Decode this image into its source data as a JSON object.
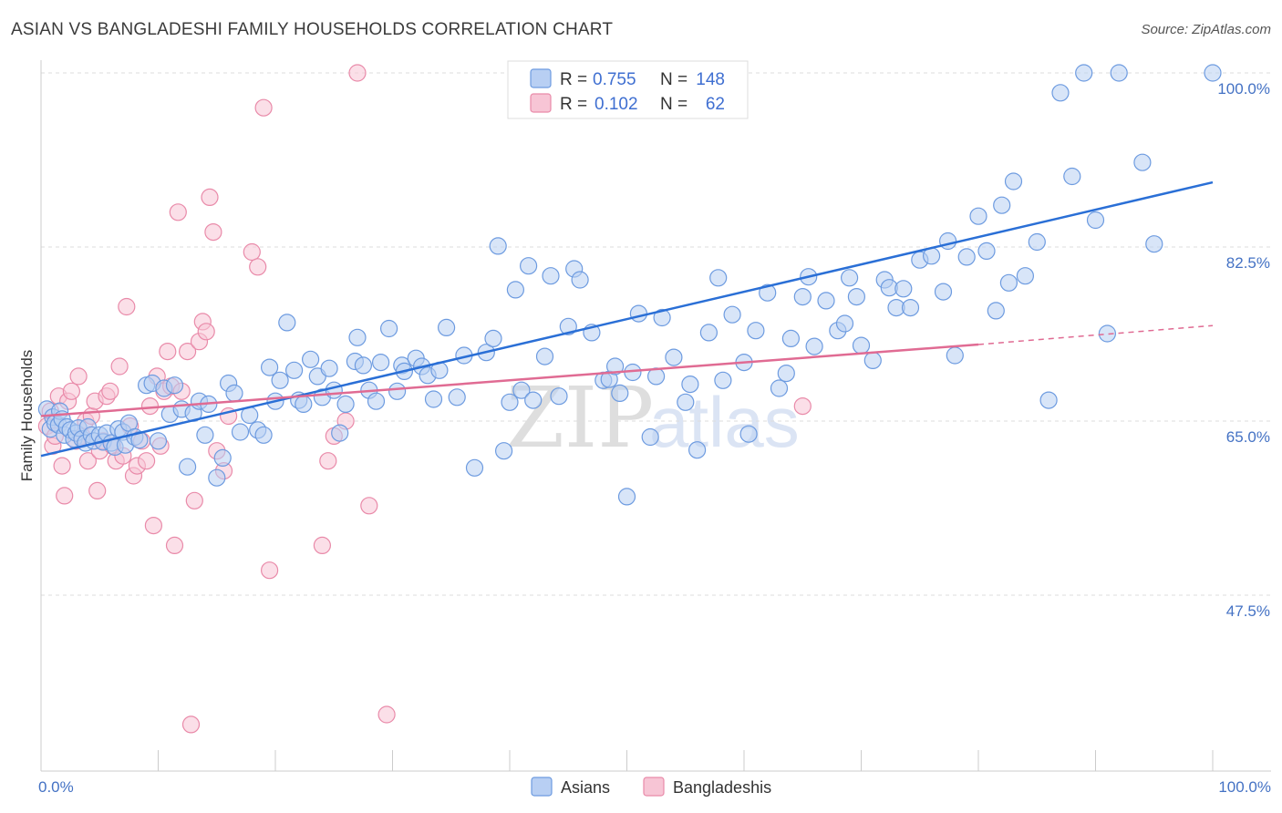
{
  "title": "ASIAN VS BANGLADESHI FAMILY HOUSEHOLDS CORRELATION CHART",
  "source": "Source: ZipAtlas.com",
  "watermark": {
    "zip": "ZIP",
    "atlas": "atlas"
  },
  "chart_data": {
    "type": "scatter",
    "ylabel": "Family Households",
    "xlabel": "",
    "xlim": [
      0,
      100
    ],
    "ylim": [
      30,
      100
    ],
    "x_ticks": [
      "0.0%",
      "100.0%"
    ],
    "y_ticks": [
      {
        "value": 100.0,
        "label": "100.0%"
      },
      {
        "value": 82.5,
        "label": "82.5%"
      },
      {
        "value": 65.0,
        "label": "65.0%"
      },
      {
        "value": 47.5,
        "label": "47.5%"
      }
    ],
    "legend": {
      "r_label": "R =",
      "n_label": "N =",
      "entries": [
        {
          "name": "Asians",
          "r": "0.755",
          "n": "148",
          "color": "#6d9be0",
          "fill": "#b8cff3"
        },
        {
          "name": "Bangladeshis",
          "r": "0.102",
          "n": "62",
          "color": "#e98aa9",
          "fill": "#f7c5d5"
        }
      ]
    },
    "series": [
      {
        "name": "Asians",
        "color": "#6d9be0",
        "trend": {
          "x0": 0,
          "y0": 61.5,
          "x1": 100,
          "y1": 89.0,
          "color": "#2a6fd6"
        },
        "points": [
          [
            0.5,
            66.2
          ],
          [
            0.8,
            64.2
          ],
          [
            1.0,
            65.4
          ],
          [
            1.2,
            64.8
          ],
          [
            1.5,
            64.6
          ],
          [
            1.6,
            66.0
          ],
          [
            1.8,
            65.2
          ],
          [
            2.0,
            63.6
          ],
          [
            2.2,
            64.4
          ],
          [
            2.5,
            64.1
          ],
          [
            2.8,
            63.2
          ],
          [
            3.0,
            63.8
          ],
          [
            3.2,
            64.3
          ],
          [
            3.5,
            63.2
          ],
          [
            3.8,
            62.8
          ],
          [
            4.0,
            64.4
          ],
          [
            4.3,
            63.6
          ],
          [
            4.5,
            63.0
          ],
          [
            5.0,
            63.6
          ],
          [
            5.3,
            62.9
          ],
          [
            5.6,
            63.8
          ],
          [
            6.0,
            62.8
          ],
          [
            6.3,
            62.4
          ],
          [
            6.6,
            64.2
          ],
          [
            7.0,
            63.9
          ],
          [
            7.2,
            62.6
          ],
          [
            7.5,
            64.8
          ],
          [
            8.0,
            63.4
          ],
          [
            8.4,
            63.1
          ],
          [
            9.0,
            68.6
          ],
          [
            9.5,
            68.8
          ],
          [
            10.0,
            63.0
          ],
          [
            10.5,
            68.3
          ],
          [
            11.0,
            65.7
          ],
          [
            11.4,
            68.6
          ],
          [
            12.0,
            66.2
          ],
          [
            12.5,
            60.4
          ],
          [
            13.0,
            65.8
          ],
          [
            13.5,
            67.0
          ],
          [
            14.0,
            63.6
          ],
          [
            14.3,
            66.7
          ],
          [
            15.0,
            59.3
          ],
          [
            15.5,
            61.3
          ],
          [
            16.0,
            68.8
          ],
          [
            16.5,
            67.8
          ],
          [
            17.0,
            63.9
          ],
          [
            17.8,
            65.6
          ],
          [
            18.5,
            64.1
          ],
          [
            19.0,
            63.6
          ],
          [
            19.5,
            70.4
          ],
          [
            20.0,
            67.0
          ],
          [
            20.4,
            69.1
          ],
          [
            21.0,
            74.9
          ],
          [
            21.6,
            70.1
          ],
          [
            22.0,
            67.1
          ],
          [
            22.4,
            66.7
          ],
          [
            23.0,
            71.2
          ],
          [
            23.6,
            69.5
          ],
          [
            24.0,
            67.4
          ],
          [
            24.6,
            70.3
          ],
          [
            25.0,
            68.1
          ],
          [
            25.5,
            63.8
          ],
          [
            26.0,
            66.7
          ],
          [
            26.8,
            71.0
          ],
          [
            27.0,
            73.4
          ],
          [
            27.5,
            70.6
          ],
          [
            28.0,
            68.1
          ],
          [
            28.6,
            67.0
          ],
          [
            29.0,
            70.9
          ],
          [
            29.7,
            74.3
          ],
          [
            30.4,
            68.0
          ],
          [
            30.8,
            70.6
          ],
          [
            31.0,
            70.0
          ],
          [
            32.0,
            71.3
          ],
          [
            32.5,
            70.5
          ],
          [
            33.0,
            69.6
          ],
          [
            33.5,
            67.2
          ],
          [
            34.0,
            70.1
          ],
          [
            34.6,
            74.4
          ],
          [
            35.5,
            67.4
          ],
          [
            36.1,
            71.6
          ],
          [
            37.0,
            60.3
          ],
          [
            38.0,
            71.9
          ],
          [
            38.6,
            73.3
          ],
          [
            39.0,
            82.6
          ],
          [
            39.5,
            62.0
          ],
          [
            40.0,
            66.9
          ],
          [
            40.5,
            78.2
          ],
          [
            41.0,
            68.1
          ],
          [
            41.6,
            80.6
          ],
          [
            42.0,
            67.1
          ],
          [
            43.0,
            71.5
          ],
          [
            43.5,
            79.6
          ],
          [
            44.2,
            67.5
          ],
          [
            45.0,
            74.5
          ],
          [
            45.5,
            80.3
          ],
          [
            46.0,
            79.2
          ],
          [
            47.0,
            73.9
          ],
          [
            48.0,
            69.1
          ],
          [
            48.5,
            69.2
          ],
          [
            49.0,
            70.5
          ],
          [
            49.4,
            67.8
          ],
          [
            50.0,
            57.4
          ],
          [
            50.5,
            69.9
          ],
          [
            51.0,
            75.8
          ],
          [
            52.0,
            63.4
          ],
          [
            52.5,
            69.5
          ],
          [
            53.0,
            75.4
          ],
          [
            54.0,
            71.4
          ],
          [
            55.0,
            66.9
          ],
          [
            55.4,
            68.7
          ],
          [
            56.0,
            62.1
          ],
          [
            57.0,
            73.9
          ],
          [
            57.8,
            79.4
          ],
          [
            58.2,
            69.1
          ],
          [
            59.0,
            75.7
          ],
          [
            60.0,
            70.9
          ],
          [
            60.4,
            63.7
          ],
          [
            61.0,
            74.1
          ],
          [
            62.0,
            77.9
          ],
          [
            63.0,
            68.3
          ],
          [
            63.6,
            69.8
          ],
          [
            64.0,
            73.3
          ],
          [
            65.0,
            77.5
          ],
          [
            65.5,
            79.5
          ],
          [
            66.0,
            72.5
          ],
          [
            67.0,
            77.1
          ],
          [
            68.0,
            74.1
          ],
          [
            68.6,
            74.8
          ],
          [
            69.0,
            79.4
          ],
          [
            69.6,
            77.5
          ],
          [
            70.0,
            72.6
          ],
          [
            71.0,
            71.1
          ],
          [
            72.0,
            79.2
          ],
          [
            72.4,
            78.4
          ],
          [
            73.0,
            76.4
          ],
          [
            73.6,
            78.3
          ],
          [
            74.2,
            76.4
          ],
          [
            75.0,
            81.2
          ],
          [
            76.0,
            81.6
          ],
          [
            77.0,
            78.0
          ],
          [
            77.4,
            83.1
          ],
          [
            78.0,
            71.6
          ],
          [
            79.0,
            81.5
          ],
          [
            80.0,
            85.6
          ],
          [
            80.7,
            82.1
          ],
          [
            81.5,
            76.1
          ],
          [
            82.0,
            86.7
          ],
          [
            82.6,
            78.9
          ],
          [
            83.0,
            89.1
          ],
          [
            84.0,
            79.6
          ],
          [
            85.0,
            83.0
          ],
          [
            86.0,
            67.1
          ],
          [
            87.0,
            98.0
          ],
          [
            88.0,
            89.6
          ],
          [
            89.0,
            100.0
          ],
          [
            90.0,
            85.2
          ],
          [
            91.0,
            73.8
          ],
          [
            92.0,
            100.0
          ],
          [
            94.0,
            91.0
          ],
          [
            95.0,
            82.8
          ],
          [
            100.0,
            100.0
          ]
        ]
      },
      {
        "name": "Bangladeshis",
        "color": "#e98aa9",
        "trend": {
          "x0": 0,
          "y0": 65.5,
          "x1": 80,
          "y1": 72.7,
          "dash_x1": 100,
          "dash_y1": 74.6,
          "color": "#e06b93"
        },
        "points": [
          [
            0.5,
            64.5
          ],
          [
            0.8,
            66.0
          ],
          [
            1.0,
            62.5
          ],
          [
            1.2,
            63.5
          ],
          [
            1.5,
            67.5
          ],
          [
            1.8,
            60.5
          ],
          [
            2.0,
            57.5
          ],
          [
            2.3,
            67.0
          ],
          [
            2.6,
            68.0
          ],
          [
            3.0,
            63.0
          ],
          [
            3.2,
            69.5
          ],
          [
            3.5,
            63.5
          ],
          [
            3.8,
            65.0
          ],
          [
            4.0,
            61.0
          ],
          [
            4.3,
            65.5
          ],
          [
            4.6,
            67.0
          ],
          [
            4.8,
            58.0
          ],
          [
            5.0,
            62.0
          ],
          [
            5.3,
            63.0
          ],
          [
            5.6,
            67.5
          ],
          [
            5.9,
            68.0
          ],
          [
            6.1,
            62.5
          ],
          [
            6.4,
            61.0
          ],
          [
            6.7,
            70.5
          ],
          [
            7.0,
            61.5
          ],
          [
            7.3,
            76.5
          ],
          [
            7.6,
            64.5
          ],
          [
            7.9,
            59.5
          ],
          [
            8.2,
            60.5
          ],
          [
            8.6,
            63.0
          ],
          [
            9.0,
            61.0
          ],
          [
            9.3,
            66.5
          ],
          [
            9.6,
            54.5
          ],
          [
            9.9,
            69.5
          ],
          [
            10.2,
            62.5
          ],
          [
            10.5,
            68.0
          ],
          [
            10.8,
            72.0
          ],
          [
            11.1,
            68.5
          ],
          [
            11.4,
            52.5
          ],
          [
            11.7,
            86.0
          ],
          [
            12.0,
            68.0
          ],
          [
            12.5,
            72.0
          ],
          [
            12.8,
            34.5
          ],
          [
            13.1,
            57.0
          ],
          [
            13.5,
            73.0
          ],
          [
            13.8,
            75.0
          ],
          [
            14.1,
            74.0
          ],
          [
            14.4,
            87.5
          ],
          [
            14.7,
            84.0
          ],
          [
            15.0,
            62.0
          ],
          [
            15.6,
            60.0
          ],
          [
            16.0,
            65.5
          ],
          [
            18.0,
            82.0
          ],
          [
            18.5,
            80.5
          ],
          [
            19.0,
            96.5
          ],
          [
            19.5,
            50.0
          ],
          [
            24.0,
            52.5
          ],
          [
            24.5,
            61.0
          ],
          [
            25.0,
            63.5
          ],
          [
            26.0,
            65.0
          ],
          [
            27.0,
            100.0
          ],
          [
            28.0,
            56.5
          ],
          [
            29.5,
            35.5
          ],
          [
            65.0,
            66.5
          ]
        ]
      }
    ]
  }
}
